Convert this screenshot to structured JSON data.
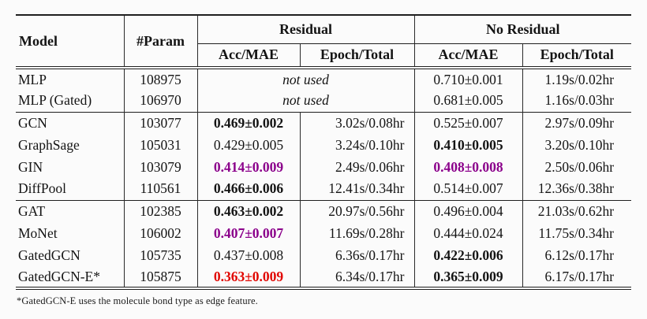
{
  "colors": {
    "highlight_purple": "#8b008b",
    "highlight_red": "#e10600",
    "rule": "#1f1f1f"
  },
  "table": {
    "headers": {
      "model": "Model",
      "param": "#Param",
      "residual": "Residual",
      "no_residual": "No Residual",
      "acc_mae": "Acc/MAE",
      "epoch_total": "Epoch/Total"
    },
    "sections": [
      {
        "rows": [
          {
            "model": "MLP",
            "param": "108975",
            "merged_residual": {
              "text": "not used",
              "style": "italic"
            },
            "nr_acc": {
              "text": "0.710±0.001",
              "style": "normal"
            },
            "nr_time": {
              "text": "1.19s/0.02hr"
            }
          },
          {
            "model": "MLP (Gated)",
            "param": "106970",
            "merged_residual": {
              "text": "not used",
              "style": "italic"
            },
            "nr_acc": {
              "text": "0.681±0.005",
              "style": "normal"
            },
            "nr_time": {
              "text": "1.16s/0.03hr"
            }
          }
        ]
      },
      {
        "rows": [
          {
            "model": "GCN",
            "param": "103077",
            "r_acc": {
              "text": "0.469±0.002",
              "style": "bold"
            },
            "r_time": {
              "text": "3.02s/0.08hr"
            },
            "nr_acc": {
              "text": "0.525±0.007",
              "style": "normal"
            },
            "nr_time": {
              "text": "2.97s/0.09hr"
            }
          },
          {
            "model": "GraphSage",
            "param": "105031",
            "r_acc": {
              "text": "0.429±0.005",
              "style": "normal"
            },
            "r_time": {
              "text": "3.24s/0.10hr"
            },
            "nr_acc": {
              "text": "0.410±0.005",
              "style": "bold"
            },
            "nr_time": {
              "text": "3.20s/0.10hr"
            }
          },
          {
            "model": "GIN",
            "param": "103079",
            "r_acc": {
              "text": "0.414±0.009",
              "style": "bold-purple"
            },
            "r_time": {
              "text": "2.49s/0.06hr"
            },
            "nr_acc": {
              "text": "0.408±0.008",
              "style": "bold-purple"
            },
            "nr_time": {
              "text": "2.50s/0.06hr"
            }
          },
          {
            "model": "DiffPool",
            "param": "110561",
            "r_acc": {
              "text": "0.466±0.006",
              "style": "bold"
            },
            "r_time": {
              "text": "12.41s/0.34hr"
            },
            "nr_acc": {
              "text": "0.514±0.007",
              "style": "normal"
            },
            "nr_time": {
              "text": "12.36s/0.38hr"
            }
          }
        ]
      },
      {
        "rows": [
          {
            "model": "GAT",
            "param": "102385",
            "r_acc": {
              "text": "0.463±0.002",
              "style": "bold"
            },
            "r_time": {
              "text": "20.97s/0.56hr"
            },
            "nr_acc": {
              "text": "0.496±0.004",
              "style": "normal"
            },
            "nr_time": {
              "text": "21.03s/0.62hr"
            }
          },
          {
            "model": "MoNet",
            "param": "106002",
            "r_acc": {
              "text": "0.407±0.007",
              "style": "bold-purple"
            },
            "r_time": {
              "text": "11.69s/0.28hr"
            },
            "nr_acc": {
              "text": "0.444±0.024",
              "style": "normal"
            },
            "nr_time": {
              "text": "11.75s/0.34hr"
            }
          },
          {
            "model": "GatedGCN",
            "param": "105735",
            "r_acc": {
              "text": "0.437±0.008",
              "style": "normal"
            },
            "r_time": {
              "text": "6.36s/0.17hr"
            },
            "nr_acc": {
              "text": "0.422±0.006",
              "style": "bold"
            },
            "nr_time": {
              "text": "6.12s/0.17hr"
            }
          },
          {
            "model": "GatedGCN-E*",
            "param": "105875",
            "r_acc": {
              "text": "0.363±0.009",
              "style": "bold-red"
            },
            "r_time": {
              "text": "6.34s/0.17hr"
            },
            "nr_acc": {
              "text": "0.365±0.009",
              "style": "bold"
            },
            "nr_time": {
              "text": "6.17s/0.17hr"
            }
          }
        ]
      }
    ],
    "footnote": "*GatedGCN-E uses the molecule bond type as edge feature."
  }
}
